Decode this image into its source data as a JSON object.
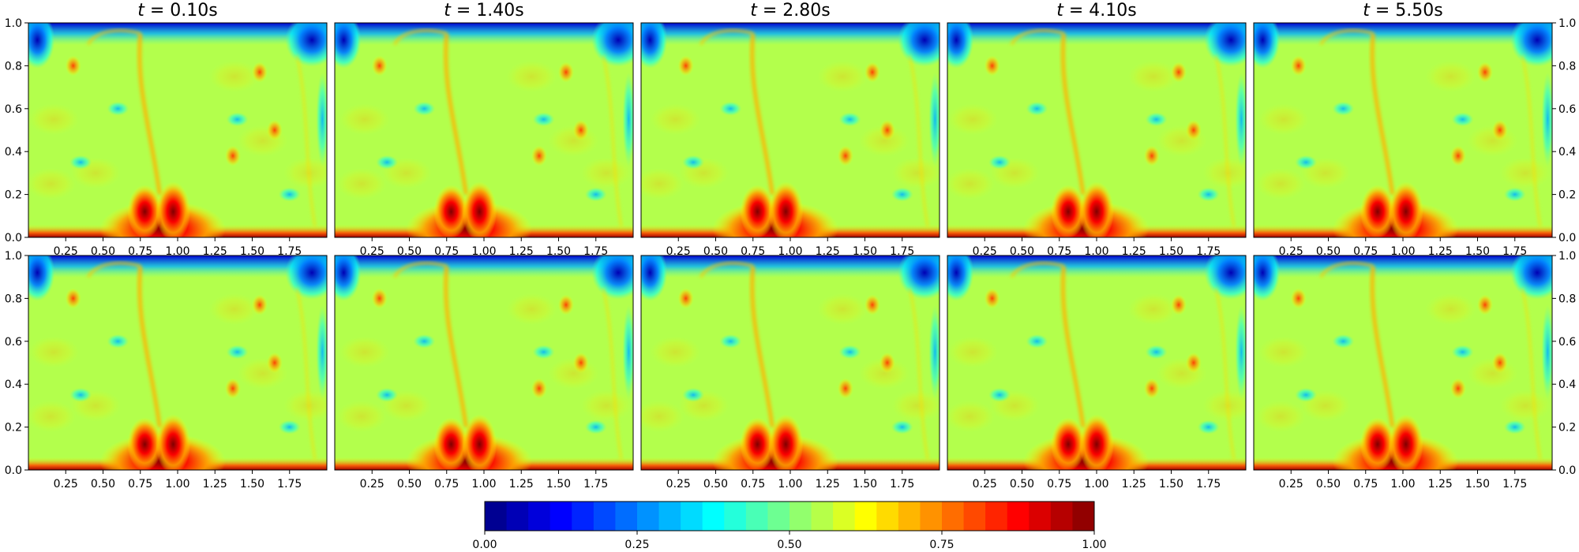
{
  "chart_data": {
    "type": "heatmap",
    "layout": {
      "rows": 2,
      "cols": 5
    },
    "titles": [
      "0.10s",
      "1.40s",
      "2.80s",
      "4.10s",
      "5.50s"
    ],
    "title_prefix": "t",
    "title_eq": " = ",
    "xlim": [
      0,
      2
    ],
    "ylim": [
      0,
      1
    ],
    "x_ticks": [
      0.25,
      0.5,
      0.75,
      1.0,
      1.25,
      1.5,
      1.75
    ],
    "x_tick_labels": [
      "0.25",
      "0.50",
      "0.75",
      "1.00",
      "1.25",
      "1.50",
      "1.75"
    ],
    "y_ticks": [
      0.0,
      0.2,
      0.4,
      0.6,
      0.8,
      1.0
    ],
    "y_tick_labels": [
      "0.0",
      "0.2",
      "0.4",
      "0.6",
      "0.8",
      "1.0"
    ],
    "colormap": "jet",
    "colorbar": {
      "range": [
        0,
        1
      ],
      "levels": 28,
      "ticks": [
        0.0,
        0.25,
        0.5,
        0.75,
        1.0
      ],
      "tick_labels": [
        "0.00",
        "0.25",
        "0.50",
        "0.75",
        "1.00"
      ]
    },
    "background_value": 0.55,
    "plume_centers_x": [
      0.9,
      0.9,
      0.9,
      0.93,
      0.95
    ]
  }
}
